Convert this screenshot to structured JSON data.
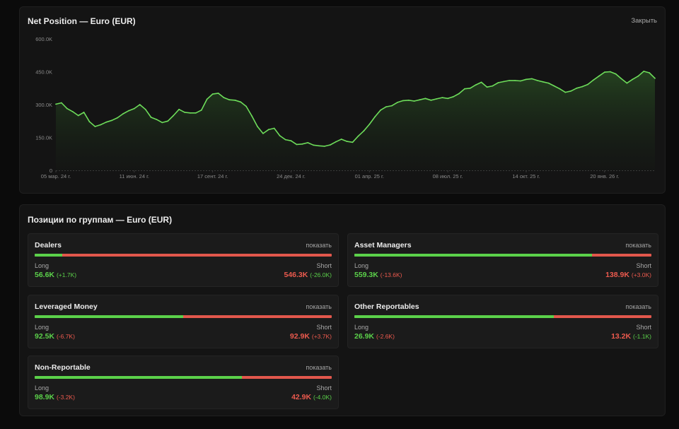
{
  "chart_panel": {
    "title": "Net Position — Euro (EUR)",
    "close_label": "Закрыть"
  },
  "chart_data": {
    "type": "area",
    "title": "Net Position — Euro (EUR)",
    "ylim": [
      0,
      600000
    ],
    "y_ticks": [
      0,
      150000,
      300000,
      450000,
      600000
    ],
    "y_tick_labels": [
      "0",
      "150.0K",
      "300.0K",
      "450.0K",
      "600.0K"
    ],
    "x_tick_labels": [
      "05 мар. 24 г.",
      "11 июн. 24 г.",
      "17 сент. 24 г.",
      "24 дек. 24 г.",
      "01 апр. 25 г.",
      "08 июл. 25 г.",
      "14 окт. 25 г.",
      "20 янв. 26 г."
    ],
    "x_tick_index": [
      0,
      14,
      28,
      42,
      56,
      70,
      84,
      98
    ],
    "grid": false,
    "color": "#6ddc5a",
    "values": [
      302000,
      308000,
      282000,
      268000,
      250000,
      265000,
      222000,
      200000,
      208000,
      220000,
      228000,
      240000,
      258000,
      272000,
      282000,
      300000,
      278000,
      242000,
      232000,
      218000,
      225000,
      250000,
      278000,
      265000,
      262000,
      262000,
      275000,
      325000,
      348000,
      352000,
      332000,
      322000,
      320000,
      312000,
      292000,
      248000,
      200000,
      168000,
      186000,
      192000,
      158000,
      140000,
      135000,
      118000,
      120000,
      126000,
      115000,
      112000,
      110000,
      116000,
      130000,
      142000,
      132000,
      128000,
      156000,
      180000,
      210000,
      245000,
      275000,
      290000,
      295000,
      310000,
      318000,
      320000,
      316000,
      322000,
      328000,
      320000,
      326000,
      332000,
      328000,
      336000,
      350000,
      372000,
      375000,
      390000,
      402000,
      380000,
      385000,
      400000,
      405000,
      410000,
      410000,
      408000,
      415000,
      418000,
      410000,
      404000,
      398000,
      385000,
      372000,
      356000,
      362000,
      375000,
      382000,
      392000,
      412000,
      430000,
      448000,
      450000,
      440000,
      418000,
      398000,
      415000,
      430000,
      452000,
      445000,
      420000
    ]
  },
  "groups_panel": {
    "title": "Позиции по группам — Euro (EUR)",
    "show_label": "показать",
    "long_label": "Long",
    "short_label": "Short",
    "groups": [
      {
        "name": "Dealers",
        "long": "56.6K",
        "long_delta": "(+1.7K)",
        "long_delta_sign": "pos",
        "short": "546.3K",
        "short_delta": "(-26.0K)",
        "short_delta_sign": "pos",
        "long_share": 0.094
      },
      {
        "name": "Asset Managers",
        "long": "559.3K",
        "long_delta": "(-13.6K)",
        "long_delta_sign": "neg",
        "short": "138.9K",
        "short_delta": "(+3.0K)",
        "short_delta_sign": "neg",
        "long_share": 0.801
      },
      {
        "name": "Leveraged Money",
        "long": "92.5K",
        "long_delta": "(-6.7K)",
        "long_delta_sign": "neg",
        "short": "92.9K",
        "short_delta": "(+3.7K)",
        "short_delta_sign": "neg",
        "long_share": 0.499
      },
      {
        "name": "Other Reportables",
        "long": "26.9K",
        "long_delta": "(-2.6K)",
        "long_delta_sign": "neg",
        "short": "13.2K",
        "short_delta": "(-1.1K)",
        "short_delta_sign": "pos",
        "long_share": 0.671
      },
      {
        "name": "Non-Reportable",
        "long": "98.9K",
        "long_delta": "(-3.2K)",
        "long_delta_sign": "neg",
        "short": "42.9K",
        "short_delta": "(-4.0K)",
        "short_delta_sign": "pos",
        "long_share": 0.697
      }
    ]
  }
}
